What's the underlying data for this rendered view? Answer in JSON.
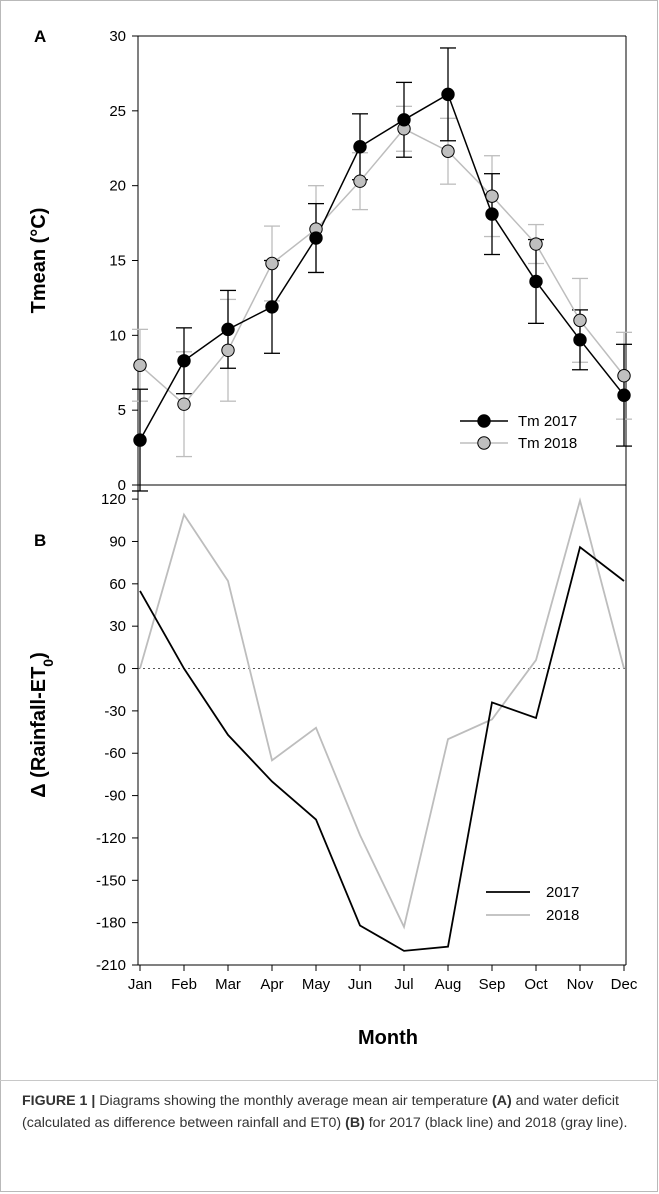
{
  "caption": {
    "label": "FIGURE 1 |",
    "parts": [
      {
        "text": " Diagrams showing the monthly average mean air temperature ",
        "bold": false
      },
      {
        "text": "(A)",
        "bold": true
      },
      {
        "text": " and water deficit (calculated as difference between rainfall and ET0) ",
        "bold": false
      },
      {
        "text": "(B)",
        "bold": true
      },
      {
        "text": " for 2017 (black line) and 2018 (gray line).",
        "bold": false
      }
    ]
  },
  "colors": {
    "series_2017": "#000000",
    "series_2018": "#bdbdbd",
    "marker_2018": "#bfbfbf",
    "axis": "#000000"
  },
  "chart_data": [
    {
      "panel": "A",
      "type": "line",
      "ylabel": "Tmean (°C)",
      "ylim": [
        0,
        30
      ],
      "yticks": [
        0,
        5,
        10,
        15,
        20,
        25,
        30
      ],
      "categories": [
        "Jan",
        "Feb",
        "Mar",
        "Apr",
        "May",
        "Jun",
        "Jul",
        "Aug",
        "Sep",
        "Oct",
        "Nov",
        "Dec"
      ],
      "legend_position": "bottom-right",
      "series": [
        {
          "name": "Tm 2017",
          "values": [
            3.0,
            8.3,
            10.4,
            11.9,
            16.5,
            22.6,
            24.4,
            26.1,
            18.1,
            13.6,
            9.7,
            6.0
          ],
          "errors": [
            3.4,
            2.2,
            2.6,
            3.1,
            2.3,
            2.2,
            2.5,
            3.1,
            2.7,
            2.8,
            2.0,
            3.4
          ]
        },
        {
          "name": "Tm 2018",
          "values": [
            8.0,
            5.4,
            9.0,
            14.8,
            17.1,
            20.3,
            23.8,
            22.3,
            19.3,
            16.1,
            11.0,
            7.3
          ],
          "errors": [
            2.4,
            3.5,
            3.4,
            2.5,
            2.9,
            1.9,
            1.5,
            2.2,
            2.7,
            1.3,
            2.8,
            2.9
          ]
        }
      ]
    },
    {
      "panel": "B",
      "type": "line",
      "ylabel": "Δ (Rainfall-ET0)",
      "ylabel_parts": {
        "prefix": "Δ (Rainfall-ET",
        "subscript": "0",
        "suffix": ")"
      },
      "xlabel": "Month",
      "ylim": [
        -210,
        130
      ],
      "yticks": [
        -210,
        -180,
        -150,
        -120,
        -90,
        -60,
        -30,
        0,
        30,
        60,
        90,
        120
      ],
      "categories": [
        "Jan",
        "Feb",
        "Mar",
        "Apr",
        "May",
        "Jun",
        "Jul",
        "Aug",
        "Sep",
        "Oct",
        "Nov",
        "Dec"
      ],
      "zero_line": "dotted",
      "legend_position": "bottom-right",
      "series": [
        {
          "name": "2017",
          "values": [
            55,
            0,
            -47,
            -80,
            -107,
            -182,
            -200,
            -197,
            -24,
            -35,
            86,
            62
          ]
        },
        {
          "name": "2018",
          "values": [
            0,
            109,
            62,
            -65,
            -42,
            -118,
            -183,
            -50,
            -36,
            6,
            119,
            0
          ]
        }
      ]
    }
  ]
}
